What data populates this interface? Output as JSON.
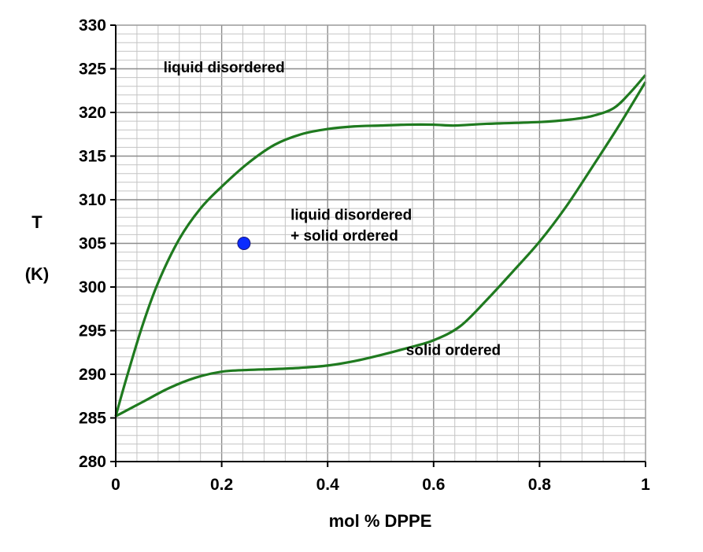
{
  "chart_data": {
    "type": "line",
    "title": "",
    "xlabel": "mol % DPPE",
    "ylabel_lines": [
      "T",
      "(K)"
    ],
    "xlim": [
      0,
      1
    ],
    "ylim": [
      280,
      330
    ],
    "x_ticks": [
      {
        "value": 0,
        "label": "0"
      },
      {
        "value": 0.2,
        "label": "0.2"
      },
      {
        "value": 0.4,
        "label": "0.4"
      },
      {
        "value": 0.6,
        "label": "0.6"
      },
      {
        "value": 0.8,
        "label": "0.8"
      },
      {
        "value": 1,
        "label": "1"
      }
    ],
    "y_ticks": [
      280,
      285,
      290,
      295,
      300,
      305,
      310,
      315,
      320,
      325,
      330
    ],
    "grid": {
      "x_minor_step": 0.04,
      "x_major_step": 0.2,
      "y_minor_step": 1,
      "y_major_step": 5
    },
    "series": [
      {
        "color": "#1f7a1f",
        "points": [
          [
            0,
            285.2
          ],
          [
            0.02,
            289.5
          ],
          [
            0.05,
            295.5
          ],
          [
            0.08,
            300.5
          ],
          [
            0.12,
            305.5
          ],
          [
            0.16,
            309
          ],
          [
            0.2,
            311.5
          ],
          [
            0.25,
            314.2
          ],
          [
            0.3,
            316.3
          ],
          [
            0.35,
            317.5
          ],
          [
            0.4,
            318.1
          ],
          [
            0.45,
            318.4
          ],
          [
            0.5,
            318.5
          ],
          [
            0.55,
            318.6
          ],
          [
            0.6,
            318.6
          ],
          [
            0.64,
            318.5
          ],
          [
            0.7,
            318.7
          ],
          [
            0.8,
            318.9
          ],
          [
            0.86,
            319.2
          ],
          [
            0.9,
            319.6
          ],
          [
            0.94,
            320.5
          ],
          [
            0.97,
            322.2
          ],
          [
            1,
            324.3
          ]
        ]
      },
      {
        "color": "#1f7a1f",
        "points": [
          [
            0,
            285.2
          ],
          [
            0.05,
            286.8
          ],
          [
            0.1,
            288.4
          ],
          [
            0.15,
            289.6
          ],
          [
            0.2,
            290.3
          ],
          [
            0.25,
            290.5
          ],
          [
            0.3,
            290.6
          ],
          [
            0.35,
            290.75
          ],
          [
            0.4,
            291
          ],
          [
            0.45,
            291.5
          ],
          [
            0.5,
            292.2
          ],
          [
            0.55,
            293
          ],
          [
            0.6,
            293.9
          ],
          [
            0.65,
            295.5
          ],
          [
            0.7,
            298.5
          ],
          [
            0.75,
            301.8
          ],
          [
            0.8,
            305.2
          ],
          [
            0.85,
            309.2
          ],
          [
            0.9,
            313.8
          ],
          [
            0.95,
            318.5
          ],
          [
            1,
            323.5
          ]
        ]
      }
    ],
    "points": [
      {
        "x": 0.242,
        "y": 305,
        "color": "#0a2bff"
      }
    ],
    "annotations": [
      {
        "text": "liquid disordered",
        "x": 0.09,
        "y": 324.6
      },
      {
        "text": "liquid disordered",
        "x": 0.33,
        "y": 307.7
      },
      {
        "text": "+ solid ordered",
        "x": 0.33,
        "y": 305.3
      },
      {
        "text": "solid ordered",
        "x": 0.548,
        "y": 292.2
      }
    ]
  }
}
